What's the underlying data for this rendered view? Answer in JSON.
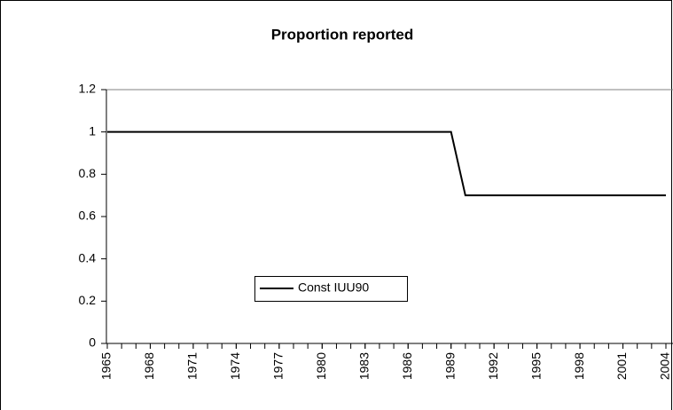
{
  "chart_data": {
    "type": "line",
    "title": "Proportion reported",
    "x": [
      1965,
      1966,
      1967,
      1968,
      1969,
      1970,
      1971,
      1972,
      1973,
      1974,
      1975,
      1976,
      1977,
      1978,
      1979,
      1980,
      1981,
      1982,
      1983,
      1984,
      1985,
      1986,
      1987,
      1988,
      1989,
      1990,
      1991,
      1992,
      1993,
      1994,
      1995,
      1996,
      1997,
      1998,
      1999,
      2000,
      2001,
      2002,
      2003,
      2004
    ],
    "series": [
      {
        "name": "Const IUU90",
        "color": "#000000",
        "values": [
          1,
          1,
          1,
          1,
          1,
          1,
          1,
          1,
          1,
          1,
          1,
          1,
          1,
          1,
          1,
          1,
          1,
          1,
          1,
          1,
          1,
          1,
          1,
          1,
          1,
          0.7,
          0.7,
          0.7,
          0.7,
          0.7,
          0.7,
          0.7,
          0.7,
          0.7,
          0.7,
          0.7,
          0.7,
          0.7,
          0.7,
          0.7
        ]
      }
    ],
    "xlim": [
      1965,
      2004
    ],
    "xticks": [
      1965,
      1968,
      1971,
      1974,
      1977,
      1980,
      1983,
      1986,
      1989,
      1992,
      1995,
      1998,
      2001,
      2004
    ],
    "ylim": [
      0,
      1.2
    ],
    "yticks": [
      0,
      0.2,
      0.4,
      0.6,
      0.8,
      1,
      1.2
    ],
    "grid": false,
    "legend": "center"
  }
}
